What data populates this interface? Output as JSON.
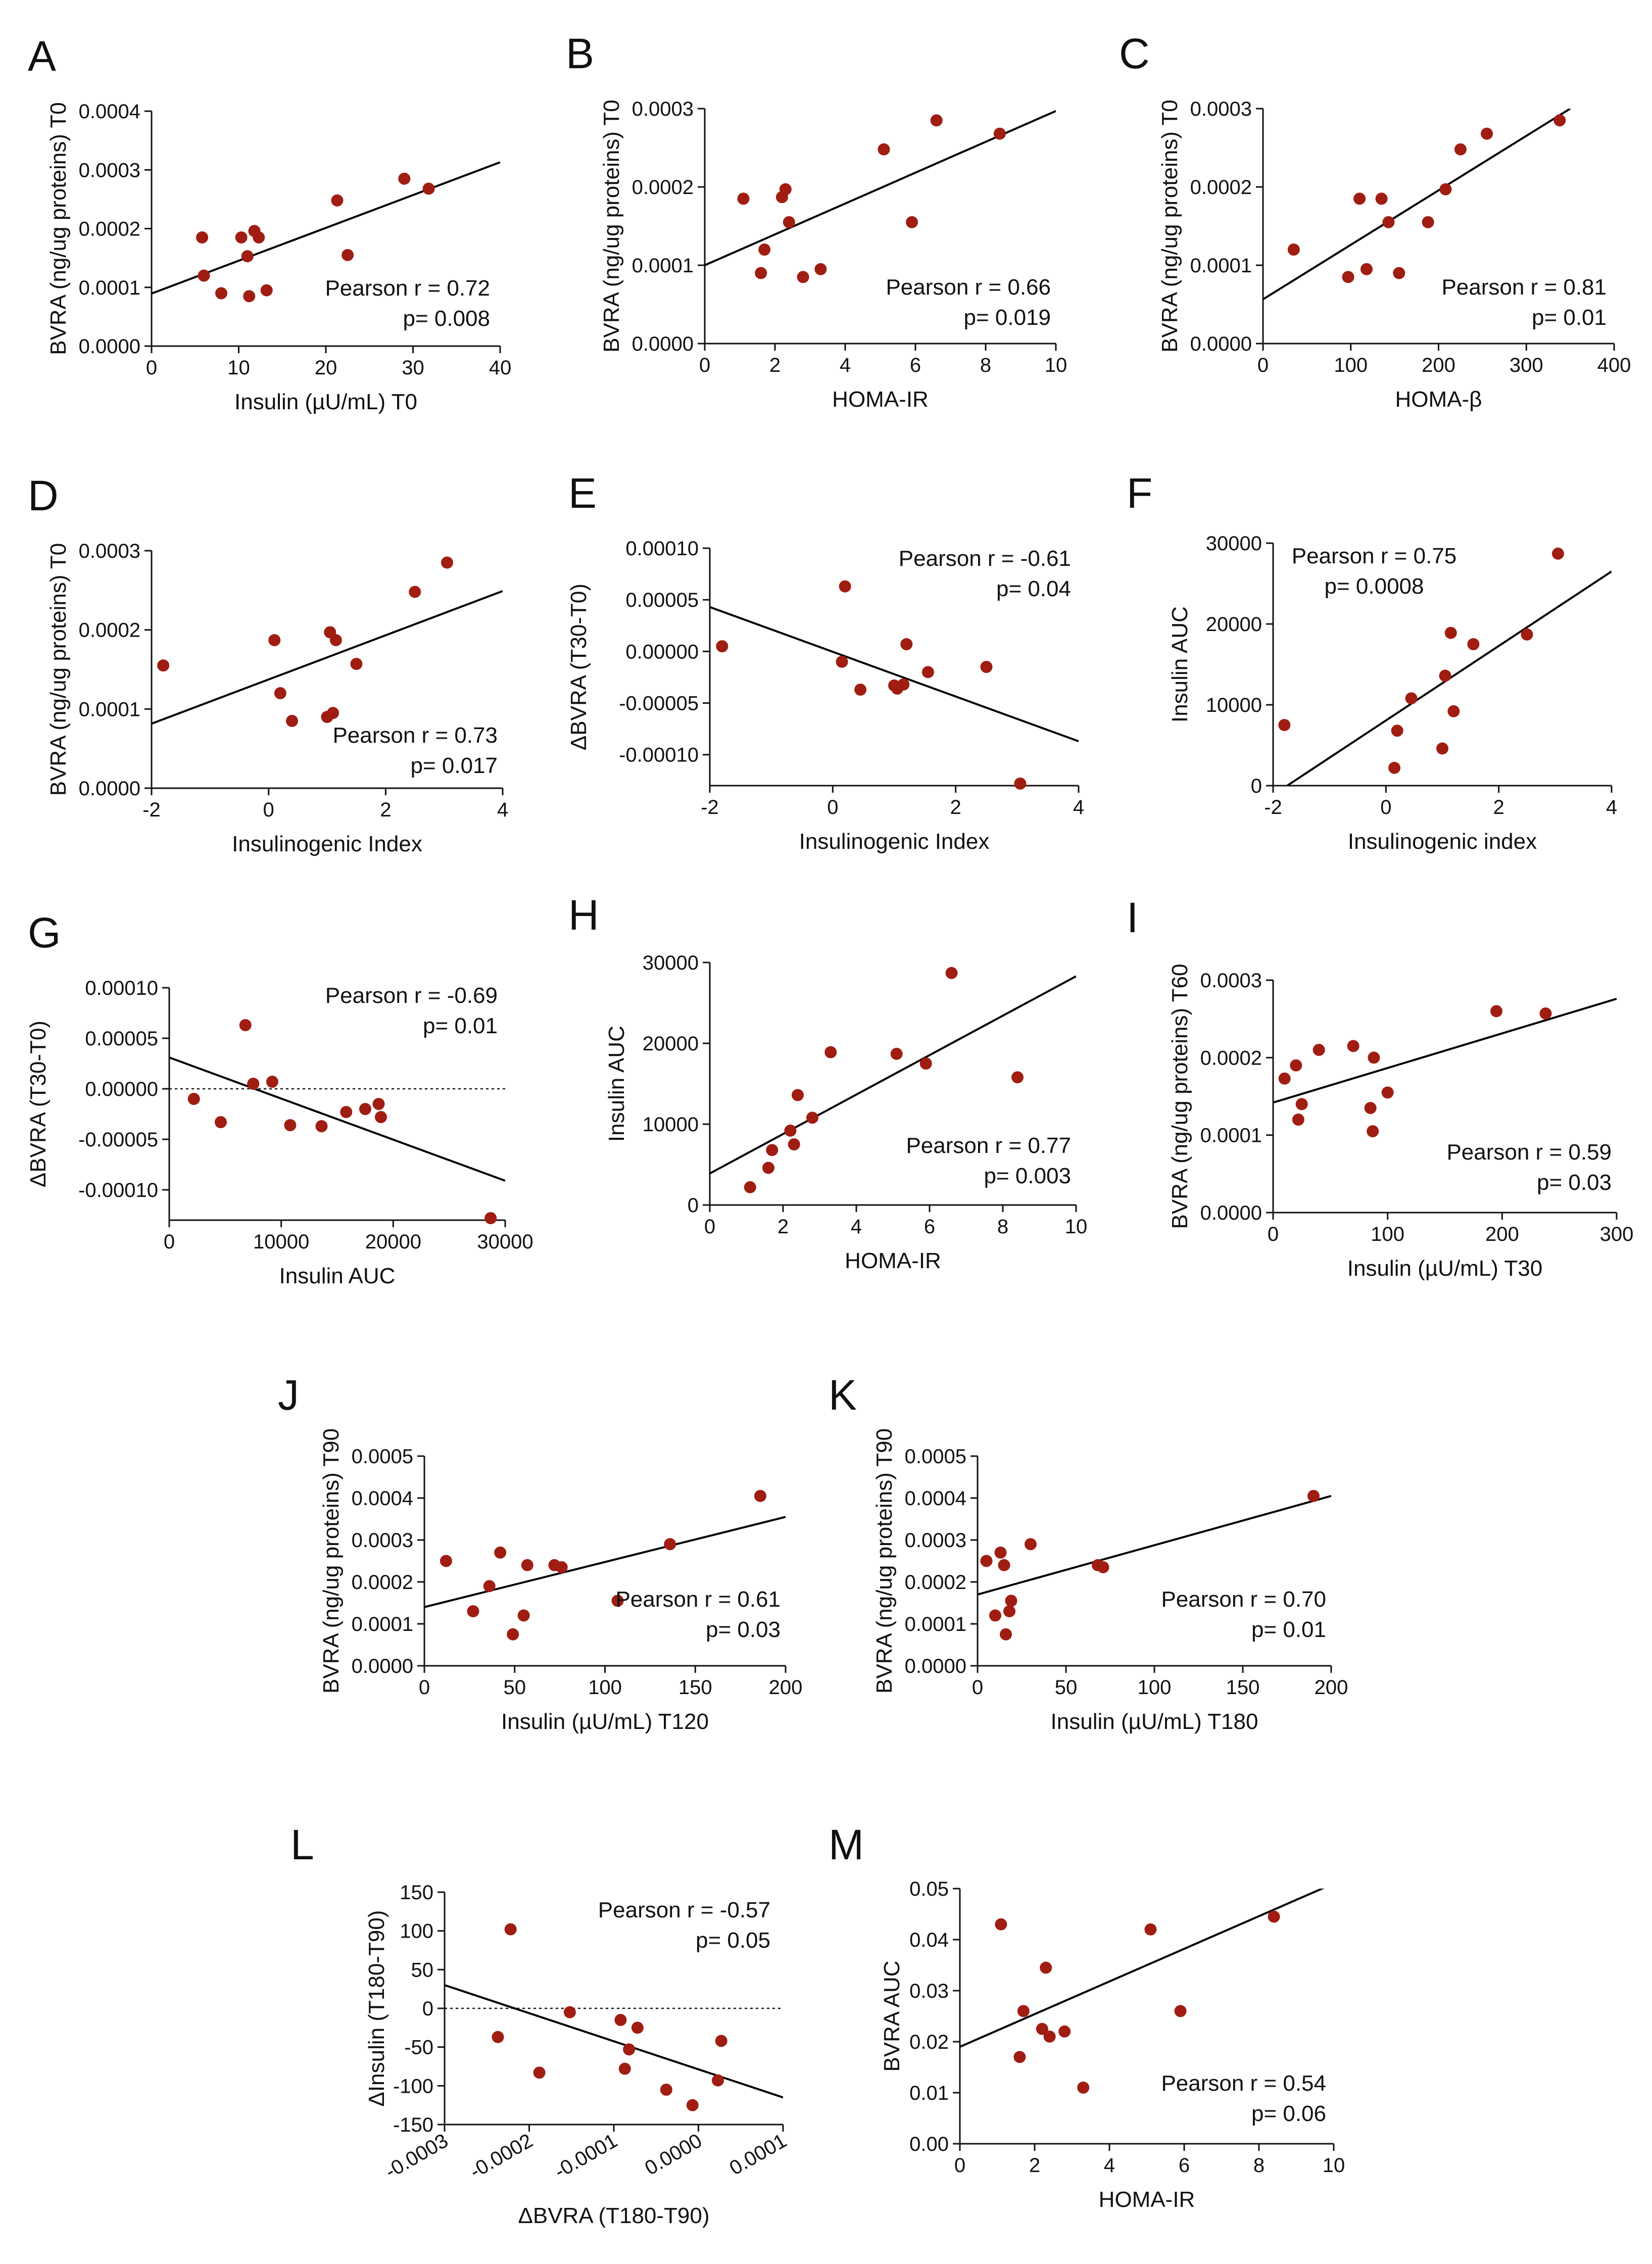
{
  "figure": {
    "point_color": "#a01d12",
    "line_color": "#000000"
  },
  "chart_data": [
    {
      "id": "A",
      "type": "scatter",
      "title": "A",
      "xlabel": "Insulin (µU/mL) T0",
      "ylabel": "BVRA (ng/ug proteins) T0",
      "xlim": [
        0,
        40
      ],
      "ylim": [
        0,
        0.0004
      ],
      "xticks": [
        0,
        10,
        20,
        30,
        40
      ],
      "xtick_labels": [
        "0",
        "10",
        "20",
        "30",
        "40"
      ],
      "yticks": [
        0,
        0.0001,
        0.0002,
        0.0003,
        0.0004
      ],
      "ytick_labels": [
        "0.0000",
        "0.0001",
        "0.0002",
        "0.0003",
        "0.0004"
      ],
      "x": [
        5.8,
        6,
        8,
        10.3,
        11,
        11.2,
        11.8,
        12.3,
        13.2,
        21.3,
        22.5,
        29,
        31.8
      ],
      "y": [
        0.000185,
        0.00012,
        9e-05,
        0.000185,
        0.000153,
        8.5e-05,
        0.000196,
        0.000185,
        9.5e-05,
        0.000248,
        0.000155,
        0.000285,
        0.000268
      ],
      "fit": [
        [
          0,
          8.95e-05
        ],
        [
          40,
          0.000313
        ]
      ],
      "stats": {
        "line1": "Pearson r =  0.72",
        "line2": "p= 0.008"
      }
    },
    {
      "id": "B",
      "type": "scatter",
      "title": "B",
      "xlabel": "HOMA-IR",
      "ylabel": "BVRA (ng/ug proteins) T0",
      "xlim": [
        0,
        10
      ],
      "ylim": [
        0,
        0.0003
      ],
      "xticks": [
        0,
        2,
        4,
        6,
        8,
        10
      ],
      "xtick_labels": [
        "0",
        "2",
        "4",
        "6",
        "8",
        "10"
      ],
      "yticks": [
        0,
        0.0001,
        0.0002,
        0.0003
      ],
      "ytick_labels": [
        "0.0000",
        "0.0001",
        "0.0002",
        "0.0003"
      ],
      "x": [
        1.1,
        1.6,
        1.7,
        2.2,
        2.3,
        2.4,
        2.8,
        3.3,
        5.1,
        5.9,
        6.6,
        8.4
      ],
      "y": [
        0.000185,
        9e-05,
        0.00012,
        0.000187,
        0.000197,
        0.000155,
        8.5e-05,
        9.5e-05,
        0.000248,
        0.000155,
        0.000285,
        0.000268
      ],
      "fit": [
        [
          0,
          0.0001
        ],
        [
          10,
          0.000297
        ]
      ],
      "stats": {
        "line1": "Pearson r =  0.66",
        "line2": "p= 0.019"
      }
    },
    {
      "id": "C",
      "type": "scatter",
      "title": "C",
      "xlabel": "HOMA-β",
      "ylabel": "BVRA (ng/ug proteins) T0",
      "xlim": [
        0,
        400
      ],
      "ylim": [
        0,
        0.0003
      ],
      "xticks": [
        0,
        100,
        200,
        300,
        400
      ],
      "xtick_labels": [
        "0",
        "100",
        "200",
        "300",
        "400"
      ],
      "yticks": [
        0,
        0.0001,
        0.0002,
        0.0003
      ],
      "ytick_labels": [
        "0.0000",
        "0.0001",
        "0.0002",
        "0.0003"
      ],
      "x": [
        35,
        97,
        110,
        118,
        135,
        143,
        155,
        188,
        208,
        225,
        255,
        338
      ],
      "y": [
        0.00012,
        8.5e-05,
        0.000185,
        9.5e-05,
        0.000185,
        0.000155,
        9e-05,
        0.000155,
        0.000197,
        0.000248,
        0.000268,
        0.000285
      ],
      "fit": [
        [
          0,
          5.65e-05
        ],
        [
          350,
          0.0003
        ]
      ],
      "stats": {
        "line1": "Pearson r =  0.81",
        "line2": "p= 0.01"
      }
    },
    {
      "id": "D",
      "type": "scatter",
      "title": "D",
      "xlabel": "Insulinogenic Index",
      "ylabel": "BVRA (ng/ug proteins) T0",
      "xlim": [
        -2,
        4
      ],
      "ylim": [
        0,
        0.0003
      ],
      "xticks": [
        -2,
        0,
        2,
        4
      ],
      "xtick_labels": [
        "-2",
        "0",
        "2",
        "4"
      ],
      "yticks": [
        0,
        0.0001,
        0.0002,
        0.0003
      ],
      "ytick_labels": [
        "0.0000",
        "0.0001",
        "0.0002",
        "0.0003"
      ],
      "x": [
        -1.8,
        0.1,
        0.2,
        0.4,
        1.0,
        1.05,
        1.1,
        1.15,
        1.5,
        2.5,
        3.05
      ],
      "y": [
        0.000155,
        0.000187,
        0.00012,
        8.5e-05,
        9e-05,
        0.000197,
        9.5e-05,
        0.000187,
        0.000157,
        0.000248,
        0.000285
      ],
      "fit": [
        [
          -2,
          8.15e-05
        ],
        [
          4,
          0.000249
        ]
      ],
      "stats": {
        "line1": "Pearson r =  0.73",
        "line2": "p= 0.017"
      }
    },
    {
      "id": "E",
      "type": "scatter",
      "title": "E",
      "xlabel": "Insulinogenic Index",
      "ylabel": "ΔBVRA (T30-T0)",
      "xlim": [
        -2,
        4
      ],
      "ylim": [
        -0.00013,
        0.0001
      ],
      "xticks": [
        -2,
        0,
        2,
        4
      ],
      "xtick_labels": [
        "-2",
        "0",
        "2",
        "4"
      ],
      "yticks": [
        -0.0001,
        -5e-05,
        0,
        5e-05,
        0.0001
      ],
      "ytick_labels": [
        "-0.00010",
        "-0.00005",
        "0.00000",
        "0.00005",
        "0.00010"
      ],
      "x": [
        -1.8,
        0.15,
        0.2,
        0.45,
        1.0,
        1.05,
        1.15,
        1.2,
        1.55,
        2.5,
        3.05
      ],
      "y": [
        5e-06,
        -1e-05,
        6.3e-05,
        -3.7e-05,
        -3.3e-05,
        -3.6e-05,
        -3.2e-05,
        7e-06,
        -2e-05,
        -1.5e-05,
        -0.000128
      ],
      "fit": [
        [
          -2,
          4.3e-05
        ],
        [
          4,
          -8.7e-05
        ]
      ],
      "stats": {
        "line1": "Pearson r = -0.61",
        "line2": "p= 0.04"
      }
    },
    {
      "id": "F",
      "type": "scatter",
      "title": "F",
      "xlabel": "Insulinogenic index",
      "ylabel": "Insulin AUC",
      "xlim": [
        -2,
        4
      ],
      "ylim": [
        0,
        30000
      ],
      "xticks": [
        -2,
        0,
        2,
        4
      ],
      "xtick_labels": [
        "-2",
        "0",
        "2",
        "4"
      ],
      "yticks": [
        0,
        10000,
        20000,
        30000
      ],
      "ytick_labels": [
        "0",
        "10000",
        "20000",
        "30000"
      ],
      "x": [
        -1.8,
        0.15,
        0.2,
        0.45,
        1.0,
        1.05,
        1.15,
        1.2,
        1.55,
        2.5,
        3.05
      ],
      "y": [
        7500,
        2200,
        6800,
        10800,
        4600,
        13600,
        18900,
        9200,
        17500,
        18700,
        28700
      ],
      "fit": [
        [
          -1.75,
          0
        ],
        [
          4,
          26500
        ]
      ],
      "stats": {
        "line1": "Pearson r = 0.75",
        "line2": "p= 0.0008"
      }
    },
    {
      "id": "G",
      "type": "scatter",
      "title": "G",
      "xlabel": "Insulin AUC",
      "ylabel": "ΔBVRA (T30-T0)",
      "xlim": [
        0,
        30000
      ],
      "ylim": [
        -0.00013,
        0.0001
      ],
      "xticks": [
        0,
        10000,
        20000,
        30000
      ],
      "xtick_labels": [
        "0",
        "10000",
        "20000",
        "30000"
      ],
      "yticks": [
        -0.0001,
        -5e-05,
        0,
        5e-05,
        0.0001
      ],
      "ytick_labels": [
        "-0.00010",
        "-0.00005",
        "0.00000",
        "0.00005",
        "0.00010"
      ],
      "x": [
        2200,
        4600,
        6800,
        7500,
        9200,
        10800,
        13600,
        15800,
        17500,
        18700,
        18900,
        28700
      ],
      "y": [
        -1e-05,
        -3.3e-05,
        6.3e-05,
        5e-06,
        7e-06,
        -3.6e-05,
        -3.7e-05,
        -2.3e-05,
        -2e-05,
        -1.5e-05,
        -2.8e-05,
        -0.000128
      ],
      "fit": [
        [
          0,
          3.1e-05
        ],
        [
          30000,
          -9.1e-05
        ]
      ],
      "zero_line": true,
      "stats": {
        "line1": "Pearson r = -0.69",
        "line2": "p= 0.01"
      }
    },
    {
      "id": "H",
      "type": "scatter",
      "title": "H",
      "xlabel": "HOMA-IR",
      "ylabel": "Insulin AUC",
      "xlim": [
        0,
        10
      ],
      "ylim": [
        0,
        30000
      ],
      "xticks": [
        0,
        2,
        4,
        6,
        8,
        10
      ],
      "xtick_labels": [
        "0",
        "2",
        "4",
        "6",
        "8",
        "10"
      ],
      "yticks": [
        0,
        10000,
        20000,
        30000
      ],
      "ytick_labels": [
        "0",
        "10000",
        "20000",
        "30000"
      ],
      "x": [
        1.1,
        1.6,
        1.7,
        2.2,
        2.3,
        2.4,
        2.8,
        3.3,
        5.1,
        5.9,
        6.6,
        8.4
      ],
      "y": [
        2200,
        4600,
        6800,
        9200,
        7500,
        13600,
        10800,
        18900,
        18700,
        17500,
        28700,
        15800
      ],
      "fit": [
        [
          0,
          3900
        ],
        [
          10,
          28300
        ]
      ],
      "stats": {
        "line1": "Pearson r =  0.77",
        "line2": "p= 0.003"
      }
    },
    {
      "id": "I",
      "type": "scatter",
      "title": "I",
      "xlabel": "Insulin (µU/mL) T30",
      "ylabel": "BVRA (ng/ug proteins) T60",
      "xlim": [
        0,
        300
      ],
      "ylim": [
        0,
        0.0003
      ],
      "xticks": [
        0,
        100,
        200,
        300
      ],
      "xtick_labels": [
        "0",
        "100",
        "200",
        "300"
      ],
      "yticks": [
        0,
        0.0001,
        0.0002,
        0.0003
      ],
      "ytick_labels": [
        "0.0000",
        "0.0001",
        "0.0002",
        "0.0003"
      ],
      "x": [
        10,
        20,
        22,
        25,
        40,
        70,
        85,
        87,
        88,
        100,
        195,
        238
      ],
      "y": [
        0.000173,
        0.00019,
        0.00012,
        0.00014,
        0.00021,
        0.000215,
        0.000135,
        0.000105,
        0.0002,
        0.000155,
        0.00026,
        0.000257
      ],
      "fit": [
        [
          0,
          0.000142
        ],
        [
          300,
          0.000276
        ]
      ],
      "stats": {
        "line1": "Pearson r = 0.59",
        "line2": "p= 0.03"
      }
    },
    {
      "id": "J",
      "type": "scatter",
      "title": "J",
      "xlabel": "Insulin (µU/mL) T120",
      "ylabel": "BVRA (ng/ug proteins) T90",
      "xlim": [
        0,
        200
      ],
      "ylim": [
        0,
        0.0005
      ],
      "xticks": [
        0,
        50,
        100,
        150,
        200
      ],
      "xtick_labels": [
        "0",
        "50",
        "100",
        "150",
        "200"
      ],
      "yticks": [
        0,
        0.0001,
        0.0002,
        0.0003,
        0.0004,
        0.0005
      ],
      "ytick_labels": [
        "0.0000",
        "0.0001",
        "0.0002",
        "0.0003",
        "0.0004",
        "0.0005"
      ],
      "x": [
        12,
        27,
        36,
        42,
        49,
        55,
        57,
        72,
        76,
        107,
        136,
        186
      ],
      "y": [
        0.00025,
        0.00013,
        0.00019,
        0.00027,
        7.5e-05,
        0.00012,
        0.00024,
        0.00024,
        0.000235,
        0.000155,
        0.00029,
        0.000405
      ],
      "fit": [
        [
          0,
          0.00014
        ],
        [
          200,
          0.000355
        ]
      ],
      "stats": {
        "line1": "Pearson r = 0.61",
        "line2": "p= 0.03"
      }
    },
    {
      "id": "K",
      "type": "scatter",
      "title": "K",
      "xlabel": "Insulin (µU/mL) T180",
      "ylabel": "BVRA (ng/ug proteins) T90",
      "xlim": [
        0,
        200
      ],
      "ylim": [
        0,
        0.0005
      ],
      "xticks": [
        0,
        50,
        100,
        150,
        200
      ],
      "xtick_labels": [
        "0",
        "50",
        "100",
        "150",
        "200"
      ],
      "yticks": [
        0,
        0.0001,
        0.0002,
        0.0003,
        0.0004,
        0.0005
      ],
      "ytick_labels": [
        "0.0000",
        "0.0001",
        "0.0002",
        "0.0003",
        "0.0004",
        "0.0005"
      ],
      "x": [
        5,
        10,
        13,
        15,
        16,
        18,
        19,
        30,
        68,
        71,
        190
      ],
      "y": [
        0.00025,
        0.00012,
        0.00027,
        0.00024,
        7.5e-05,
        0.00013,
        0.000155,
        0.00029,
        0.00024,
        0.000235,
        0.000405
      ],
      "fit": [
        [
          0,
          0.00017
        ],
        [
          200,
          0.000405
        ]
      ],
      "stats": {
        "line1": "Pearson r = 0.70",
        "line2": "p= 0.01"
      }
    },
    {
      "id": "L",
      "type": "scatter",
      "title": "L",
      "xlabel": "ΔBVRA (T180-T90)",
      "ylabel": "ΔInsulin (T180-T90)",
      "xlim": [
        -0.0003,
        0.0001
      ],
      "ylim": [
        -150,
        150
      ],
      "xticks": [
        -0.0003,
        -0.0002,
        -0.0001,
        0,
        0.0001
      ],
      "xtick_labels": [
        "-0.0003",
        "-0.0002",
        "-0.0001",
        "0.0000",
        "0.0001"
      ],
      "yticks": [
        -150,
        -100,
        -50,
        0,
        50,
        100,
        150
      ],
      "ytick_labels": [
        "-150",
        "-100",
        "-50",
        "0",
        "50",
        "100",
        "150"
      ],
      "x": [
        -0.000237,
        -0.000222,
        -0.000188,
        -0.000152,
        -9.2e-05,
        -8.7e-05,
        -8.2e-05,
        -7.2e-05,
        -3.8e-05,
        -7e-06,
        2.3e-05,
        2.7e-05
      ],
      "y": [
        -37,
        102,
        -83,
        -5,
        -15,
        -78,
        -53,
        -25,
        -105,
        -125,
        -93,
        -42
      ],
      "fit": [
        [
          -0.0003,
          30
        ],
        [
          0.0001,
          -115
        ]
      ],
      "zero_line": true,
      "stats": {
        "line1": "Pearson r =  -0.57",
        "line2": "p= 0.05"
      }
    },
    {
      "id": "M",
      "type": "scatter",
      "title": "M",
      "xlabel": "HOMA-IR",
      "ylabel": "BVRA AUC",
      "xlim": [
        0,
        10
      ],
      "ylim": [
        0,
        0.05
      ],
      "xticks": [
        0,
        2,
        4,
        6,
        8,
        10
      ],
      "xtick_labels": [
        "0",
        "2",
        "4",
        "6",
        "8",
        "10"
      ],
      "yticks": [
        0,
        0.01,
        0.02,
        0.03,
        0.04,
        0.05
      ],
      "ytick_labels": [
        "0.00",
        "0.01",
        "0.02",
        "0.03",
        "0.04",
        "0.05"
      ],
      "x": [
        1.1,
        1.6,
        1.7,
        2.2,
        2.3,
        2.4,
        2.8,
        3.3,
        5.1,
        5.9,
        8.4
      ],
      "y": [
        0.043,
        0.017,
        0.026,
        0.0225,
        0.0345,
        0.021,
        0.022,
        0.011,
        0.042,
        0.026,
        0.0445
      ],
      "fit": [
        [
          0,
          0.019
        ],
        [
          10,
          0.051
        ]
      ],
      "stats": {
        "line1": "Pearson r = 0.54",
        "line2": "p= 0.06"
      }
    }
  ]
}
